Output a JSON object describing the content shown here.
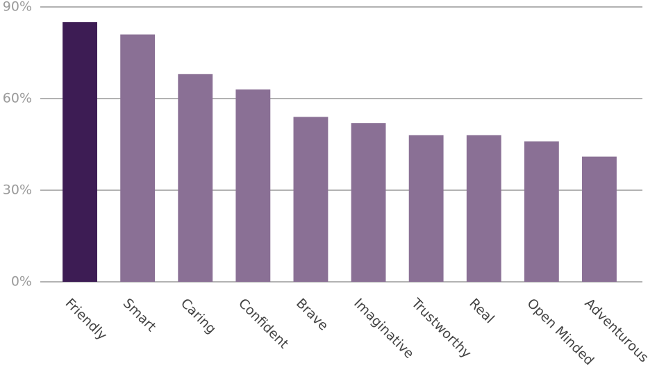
{
  "chart_data": {
    "type": "bar",
    "categories": [
      "Friendly",
      "Smart",
      "Caring",
      "Confident",
      "Brave",
      "Imaginative",
      "Trustworthy",
      "Real",
      "Open Minded",
      "Adventurous"
    ],
    "values": [
      85,
      81,
      68,
      63,
      54,
      52,
      48,
      48,
      46,
      41
    ],
    "colors": [
      "#3d1c54",
      "#8a7095",
      "#8a7095",
      "#8a7095",
      "#8a7095",
      "#8a7095",
      "#8a7095",
      "#8a7095",
      "#8a7095",
      "#8a7095"
    ],
    "ylim": [
      0,
      90
    ],
    "yticks": [
      {
        "value": 0,
        "label": "0%"
      },
      {
        "value": 30,
        "label": "30%"
      },
      {
        "value": 60,
        "label": "60%"
      },
      {
        "value": 90,
        "label": "90%"
      }
    ],
    "grid": true
  }
}
